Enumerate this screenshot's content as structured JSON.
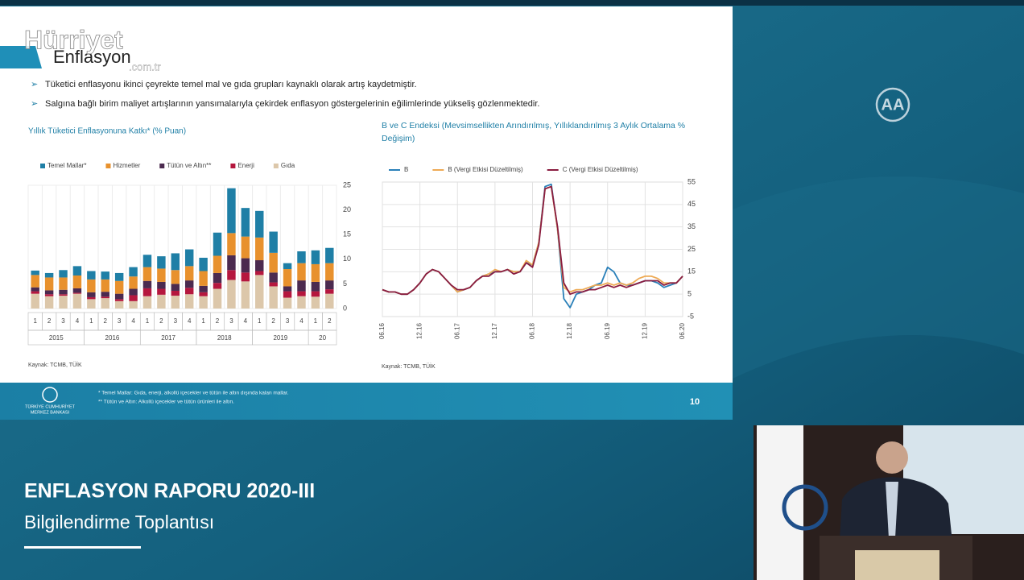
{
  "watermark": {
    "brand": "Hürriyet",
    "domain": ".com.tr"
  },
  "channel_logo": "AA",
  "slide": {
    "title": "Enflasyon",
    "bullets": [
      "Tüketici enflasyonu ikinci çeyrekte temel mal ve gıda grupları kaynaklı olarak artış kaydetmiştir.",
      "Salgına bağlı birim maliyet artışlarının yansımalarıyla çekirdek enflasyon göstergelerinin eğilimlerinde yükseliş gözlenmektedir."
    ],
    "footnotes": [
      "* Temel Mallar: Gıda, enerji, alkollü içecekler ve tütün ile altın dışında kalan mallar.",
      "** Tütün ve Altın: Alkollü içecekler ve tütün ürünleri ile altın."
    ],
    "page_number": "10",
    "logo_text": [
      "TÜRKİYE CUMHURİYET",
      "MERKEZ BANKASI"
    ]
  },
  "lower_third": {
    "title": "ENFLASYON RAPORU 2020-III",
    "subtitle": "Bilgilendirme Toplantısı"
  },
  "chart_data": [
    {
      "type": "bar",
      "stacked": true,
      "title": "Yıllık Tüketici Enflasyonuna Katkı* (% Puan)",
      "source": "Kaynak: TCMB, TÜİK",
      "categories": [
        "1",
        "2",
        "3",
        "4",
        "1",
        "2",
        "3",
        "4",
        "1",
        "2",
        "3",
        "4",
        "1",
        "2",
        "3",
        "4",
        "1",
        "2",
        "3",
        "4",
        "1",
        "2"
      ],
      "year_groups": [
        "2015",
        "2016",
        "2017",
        "2018",
        "2019",
        "20"
      ],
      "ylim": [
        0,
        25
      ],
      "yticks": [
        0,
        5,
        10,
        15,
        20,
        25
      ],
      "grid": false,
      "legend": "top",
      "series": [
        {
          "name": "Gıda",
          "color": "#dcc7aa",
          "values": [
            3,
            2.5,
            2.6,
            3,
            1.9,
            2.1,
            1.5,
            1.5,
            2.5,
            2.8,
            2.6,
            2.9,
            2.5,
            4,
            5.8,
            5.5,
            6.8,
            4.5,
            2.2,
            2.5,
            2.4,
            3
          ]
        },
        {
          "name": "Enerji",
          "color": "#b5173e",
          "values": [
            0.5,
            0.4,
            0.3,
            0.2,
            0.4,
            0.3,
            0.4,
            1.2,
            1.6,
            1.2,
            1,
            1.3,
            0.8,
            1.2,
            2,
            1.8,
            0.8,
            0.8,
            1.3,
            1,
            1.1,
            0.9
          ]
        },
        {
          "name": "Tütün ve Altın**",
          "color": "#4b2a4f",
          "values": [
            0.8,
            0.8,
            0.9,
            0.9,
            1,
            1,
            1.1,
            1.3,
            1.5,
            1.4,
            1.4,
            1.5,
            1.3,
            2,
            3,
            2.9,
            2.2,
            2,
            1,
            2.2,
            1.9,
            1.8
          ]
        },
        {
          "name": "Hizmetler",
          "color": "#e8912d",
          "values": [
            2.5,
            2.6,
            2.5,
            2.6,
            2.6,
            2.5,
            2.6,
            2.5,
            2.8,
            2.7,
            2.8,
            2.9,
            3,
            3.5,
            4.5,
            4.4,
            4.6,
            4,
            3.5,
            3.5,
            3.6,
            3.5
          ]
        },
        {
          "name": "Temel Mallar*",
          "color": "#1f7fa6",
          "values": [
            0.9,
            0.9,
            1.5,
            1.9,
            1.7,
            1.6,
            1.6,
            1.9,
            2.5,
            2.5,
            3.4,
            3.4,
            2.7,
            4.7,
            9.1,
            5.8,
            5.4,
            4.3,
            1.2,
            2.4,
            2.8,
            3.1
          ]
        }
      ],
      "legend_order": [
        4,
        3,
        2,
        1,
        0
      ]
    },
    {
      "type": "line",
      "title": "B ve C Endeksi (Mevsimsellikten Arındırılmış, Yıllıklandırılmış 3 Aylık Ortalama % Değişim)",
      "source": "Kaynak: TCMB, TÜİK",
      "categories": [
        "06.16",
        null,
        null,
        null,
        null,
        null,
        "12.16",
        null,
        null,
        null,
        null,
        null,
        "06.17",
        null,
        null,
        null,
        null,
        null,
        "12.17",
        null,
        null,
        null,
        null,
        null,
        "06.18",
        null,
        null,
        null,
        null,
        null,
        "12.18",
        null,
        null,
        null,
        null,
        null,
        "06.19",
        null,
        null,
        null,
        null,
        null,
        "12.19",
        null,
        null,
        null,
        null,
        null,
        "06.20"
      ],
      "ylim": [
        -5,
        55
      ],
      "yticks": [
        -5,
        5,
        15,
        25,
        35,
        45,
        55
      ],
      "grid": true,
      "legend": "top",
      "series": [
        {
          "name": "B",
          "color": "#2a80b9",
          "values": [
            7,
            6,
            6,
            5,
            5,
            7,
            10,
            14,
            16,
            15,
            12,
            9,
            6,
            7,
            8,
            11,
            13,
            14,
            15,
            15,
            16,
            15,
            15,
            19,
            18,
            28,
            53,
            54,
            34,
            3,
            -1,
            5,
            6,
            7,
            9,
            10,
            17,
            15,
            10,
            9,
            9,
            10,
            11,
            11,
            10,
            8,
            9,
            10,
            13
          ]
        },
        {
          "name": "B (Vergi Etkisi Düzeltilmiş)",
          "color": "#eeaa55",
          "values": [
            7,
            6,
            6,
            5,
            5,
            7,
            10,
            14,
            16,
            15,
            12,
            9,
            6,
            7,
            8,
            11,
            13,
            14,
            16,
            15,
            16,
            15,
            15,
            20,
            18,
            28,
            52,
            53,
            34,
            8,
            6,
            7,
            7,
            8,
            9,
            9,
            10,
            9,
            10,
            9,
            10,
            12,
            13,
            13,
            12,
            10,
            10,
            10,
            13
          ]
        },
        {
          "name": "C (Vergi Etkisi Düzeltilmiş)",
          "color": "#8a1c40",
          "values": [
            7,
            6,
            6,
            5,
            5,
            7,
            10,
            14,
            16,
            15,
            12,
            9,
            7,
            7,
            8,
            11,
            13,
            13,
            15,
            15,
            16,
            14,
            15,
            19,
            17,
            27,
            52,
            53,
            35,
            10,
            5,
            6,
            6,
            7,
            7,
            8,
            9,
            8,
            9,
            8,
            9,
            10,
            11,
            11,
            11,
            9,
            10,
            10,
            13
          ]
        }
      ]
    }
  ]
}
